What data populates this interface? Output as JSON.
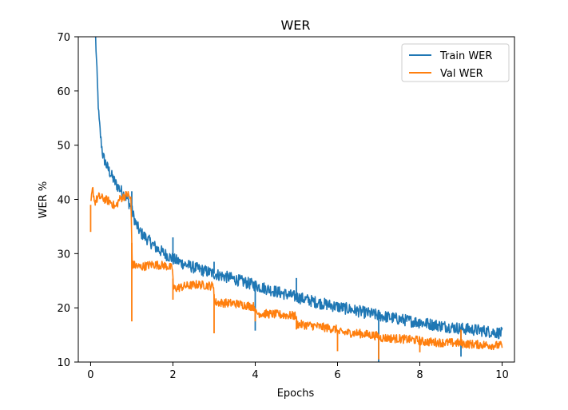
{
  "chart_data": {
    "type": "line",
    "title": "WER",
    "xlabel": "Epochs",
    "ylabel": "WER %",
    "xlim": [
      -0.3,
      10.3
    ],
    "ylim": [
      10,
      70
    ],
    "xticks": [
      0,
      2,
      4,
      6,
      8,
      10
    ],
    "yticks": [
      10,
      20,
      30,
      40,
      50,
      60,
      70
    ],
    "legend": "top-right",
    "grid": false,
    "series": [
      {
        "name": "Train WER",
        "color": "#1f77b4",
        "points": [
          [
            0.12,
            70
          ],
          [
            0.16,
            62
          ],
          [
            0.2,
            55
          ],
          [
            0.25,
            51
          ],
          [
            0.3,
            48
          ],
          [
            0.4,
            46
          ],
          [
            0.5,
            44.5
          ],
          [
            0.6,
            43
          ],
          [
            0.7,
            42
          ],
          [
            0.8,
            41
          ],
          [
            0.9,
            40
          ],
          [
            1.0,
            38
          ],
          [
            1.1,
            35.5
          ],
          [
            1.2,
            34
          ],
          [
            1.4,
            32.5
          ],
          [
            1.6,
            31
          ],
          [
            1.8,
            30
          ],
          [
            2.0,
            29
          ],
          [
            2.3,
            28
          ],
          [
            2.6,
            27.2
          ],
          [
            3.0,
            26.3
          ],
          [
            3.4,
            25.5
          ],
          [
            3.8,
            24.6
          ],
          [
            4.2,
            23.7
          ],
          [
            4.6,
            22.8
          ],
          [
            5.0,
            22
          ],
          [
            5.5,
            21
          ],
          [
            6.0,
            20.2
          ],
          [
            6.5,
            19.4
          ],
          [
            7.0,
            18.6
          ],
          [
            7.5,
            17.9
          ],
          [
            8.0,
            17.3
          ],
          [
            8.5,
            16.7
          ],
          [
            9.0,
            16.2
          ],
          [
            9.5,
            15.8
          ],
          [
            10.0,
            15.3
          ]
        ],
        "spikes": [
          [
            1.0,
            41.5
          ],
          [
            2.0,
            33
          ],
          [
            3.0,
            28.5
          ],
          [
            4.0,
            15.8
          ],
          [
            5.0,
            25.5
          ],
          [
            6.0,
            20.5
          ],
          [
            7.0,
            10
          ],
          [
            8.0,
            18
          ],
          [
            9.0,
            11
          ]
        ]
      },
      {
        "name": "Val WER",
        "color": "#ff7f0e",
        "points": [
          [
            0.0,
            39
          ],
          [
            0.05,
            42
          ],
          [
            0.1,
            39.5
          ],
          [
            0.2,
            40.5
          ],
          [
            0.35,
            40
          ],
          [
            0.5,
            39.5
          ],
          [
            0.6,
            38.5
          ],
          [
            0.7,
            40
          ],
          [
            0.8,
            40.5
          ],
          [
            0.9,
            41
          ],
          [
            0.98,
            40
          ],
          [
            1.01,
            28
          ],
          [
            1.2,
            27.5
          ],
          [
            1.5,
            28
          ],
          [
            1.8,
            27.8
          ],
          [
            1.99,
            27.3
          ],
          [
            2.01,
            23.5
          ],
          [
            2.3,
            24
          ],
          [
            2.6,
            24.3
          ],
          [
            2.99,
            24
          ],
          [
            3.01,
            21
          ],
          [
            3.5,
            20.8
          ],
          [
            3.99,
            20.2
          ],
          [
            4.01,
            19
          ],
          [
            4.5,
            18.8
          ],
          [
            4.99,
            18.5
          ],
          [
            5.01,
            17
          ],
          [
            5.5,
            16.6
          ],
          [
            5.99,
            16
          ],
          [
            6.01,
            15.5
          ],
          [
            6.5,
            15.3
          ],
          [
            6.99,
            14.8
          ],
          [
            7.01,
            14.5
          ],
          [
            7.5,
            14.3
          ],
          [
            7.99,
            14
          ],
          [
            8.01,
            13.8
          ],
          [
            8.5,
            13.6
          ],
          [
            8.99,
            13.5
          ],
          [
            9.01,
            13.4
          ],
          [
            9.5,
            13.2
          ],
          [
            10.0,
            13.0
          ]
        ],
        "spikes": [
          [
            0.0,
            34
          ],
          [
            1.0,
            17.5
          ],
          [
            2.0,
            21.5
          ],
          [
            3.0,
            15.3
          ],
          [
            4.0,
            17.5
          ],
          [
            5.0,
            16
          ],
          [
            6.0,
            12
          ],
          [
            7.0,
            10.5
          ],
          [
            8.0,
            11.8
          ],
          [
            9.0,
            16
          ]
        ]
      }
    ]
  }
}
